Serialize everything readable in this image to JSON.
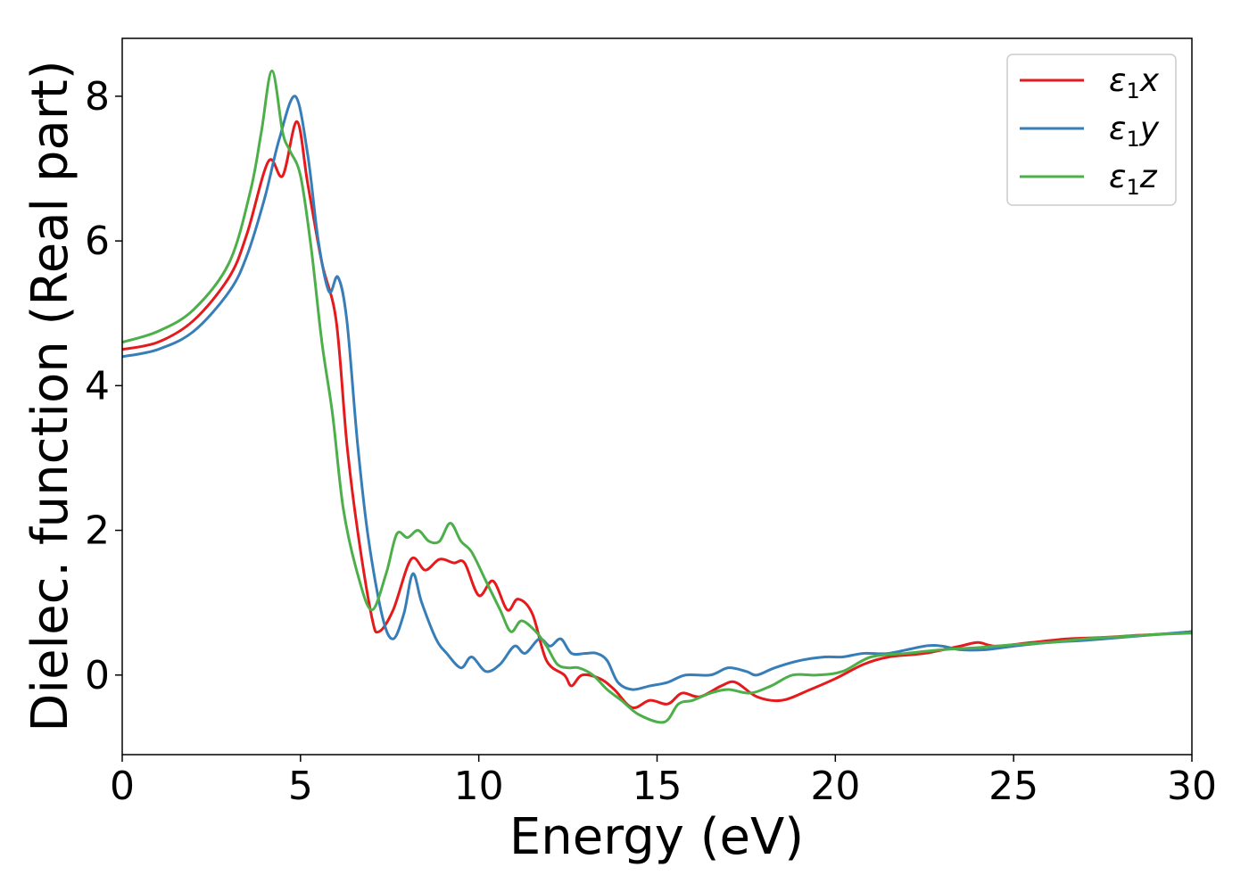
{
  "chart_data": {
    "type": "line",
    "title": "",
    "xlabel": "Energy (eV)",
    "ylabel": "Dielec. function (Real part)",
    "xlim": [
      0,
      30
    ],
    "ylim": [
      -1.1,
      8.8
    ],
    "xticks": [
      0,
      5,
      10,
      15,
      20,
      25,
      30
    ],
    "yticks": [
      0,
      2,
      4,
      6,
      8
    ],
    "xtick_labels": [
      "0",
      "5",
      "10",
      "15",
      "20",
      "25",
      "30"
    ],
    "ytick_labels": [
      "0",
      "2",
      "4",
      "6",
      "8"
    ],
    "grid": false,
    "legend_position": "top-right",
    "series": [
      {
        "name": "ε1x",
        "name_base": "ε",
        "name_sub": "1",
        "name_tail": "x",
        "color": "#e41a1c",
        "points": [
          [
            0,
            4.5
          ],
          [
            1,
            4.6
          ],
          [
            2,
            4.9
          ],
          [
            3,
            5.5
          ],
          [
            3.5,
            6.1
          ],
          [
            4.1,
            7.1
          ],
          [
            4.5,
            6.9
          ],
          [
            4.9,
            7.65
          ],
          [
            5.2,
            6.8
          ],
          [
            5.6,
            5.7
          ],
          [
            6.0,
            4.9
          ],
          [
            6.3,
            3.2
          ],
          [
            6.6,
            2.0
          ],
          [
            7.0,
            0.8
          ],
          [
            7.2,
            0.6
          ],
          [
            7.6,
            0.9
          ],
          [
            8.1,
            1.6
          ],
          [
            8.5,
            1.45
          ],
          [
            8.9,
            1.6
          ],
          [
            9.3,
            1.55
          ],
          [
            9.6,
            1.55
          ],
          [
            10.0,
            1.1
          ],
          [
            10.4,
            1.3
          ],
          [
            10.8,
            0.9
          ],
          [
            11.1,
            1.05
          ],
          [
            11.5,
            0.85
          ],
          [
            11.9,
            0.2
          ],
          [
            12.4,
            0.0
          ],
          [
            12.6,
            -0.15
          ],
          [
            12.9,
            0.0
          ],
          [
            13.4,
            -0.05
          ],
          [
            13.8,
            -0.2
          ],
          [
            14.3,
            -0.45
          ],
          [
            14.8,
            -0.35
          ],
          [
            15.3,
            -0.4
          ],
          [
            15.7,
            -0.25
          ],
          [
            16.2,
            -0.3
          ],
          [
            16.8,
            -0.15
          ],
          [
            17.2,
            -0.1
          ],
          [
            17.8,
            -0.3
          ],
          [
            18.5,
            -0.35
          ],
          [
            19.3,
            -0.2
          ],
          [
            20.0,
            -0.05
          ],
          [
            20.8,
            0.15
          ],
          [
            21.5,
            0.25
          ],
          [
            22.5,
            0.3
          ],
          [
            23.5,
            0.4
          ],
          [
            24.0,
            0.45
          ],
          [
            24.5,
            0.4
          ],
          [
            25.5,
            0.45
          ],
          [
            26.5,
            0.5
          ],
          [
            27.5,
            0.52
          ],
          [
            28.5,
            0.55
          ],
          [
            29.3,
            0.57
          ],
          [
            30,
            0.6
          ]
        ]
      },
      {
        "name": "ε1y",
        "name_base": "ε",
        "name_sub": "1",
        "name_tail": "y",
        "color": "#377eb8",
        "points": [
          [
            0,
            4.4
          ],
          [
            1,
            4.5
          ],
          [
            2,
            4.75
          ],
          [
            3,
            5.3
          ],
          [
            3.5,
            5.8
          ],
          [
            4.0,
            6.6
          ],
          [
            4.4,
            7.4
          ],
          [
            4.85,
            8.0
          ],
          [
            5.2,
            7.2
          ],
          [
            5.5,
            6.0
          ],
          [
            5.8,
            5.3
          ],
          [
            6.05,
            5.5
          ],
          [
            6.3,
            4.9
          ],
          [
            6.6,
            3.2
          ],
          [
            6.9,
            1.9
          ],
          [
            7.3,
            0.8
          ],
          [
            7.6,
            0.5
          ],
          [
            7.9,
            0.85
          ],
          [
            8.15,
            1.4
          ],
          [
            8.4,
            1.0
          ],
          [
            8.8,
            0.5
          ],
          [
            9.1,
            0.3
          ],
          [
            9.5,
            0.1
          ],
          [
            9.8,
            0.25
          ],
          [
            10.2,
            0.05
          ],
          [
            10.6,
            0.15
          ],
          [
            11.0,
            0.4
          ],
          [
            11.3,
            0.3
          ],
          [
            11.7,
            0.5
          ],
          [
            12.0,
            0.4
          ],
          [
            12.3,
            0.5
          ],
          [
            12.6,
            0.3
          ],
          [
            13.0,
            0.3
          ],
          [
            13.3,
            0.3
          ],
          [
            13.6,
            0.2
          ],
          [
            13.9,
            -0.1
          ],
          [
            14.3,
            -0.2
          ],
          [
            14.8,
            -0.15
          ],
          [
            15.3,
            -0.1
          ],
          [
            15.8,
            0.0
          ],
          [
            16.5,
            0.0
          ],
          [
            17.0,
            0.1
          ],
          [
            17.5,
            0.05
          ],
          [
            17.8,
            0.0
          ],
          [
            18.3,
            0.1
          ],
          [
            19.0,
            0.2
          ],
          [
            19.7,
            0.25
          ],
          [
            20.2,
            0.25
          ],
          [
            20.8,
            0.3
          ],
          [
            21.5,
            0.3
          ],
          [
            22.5,
            0.4
          ],
          [
            23.0,
            0.4
          ],
          [
            23.5,
            0.35
          ],
          [
            24.2,
            0.35
          ],
          [
            25.0,
            0.4
          ],
          [
            26.0,
            0.45
          ],
          [
            27.0,
            0.48
          ],
          [
            28.0,
            0.52
          ],
          [
            29.0,
            0.56
          ],
          [
            30,
            0.6
          ]
        ]
      },
      {
        "name": "ε1z",
        "name_base": "ε",
        "name_sub": "1",
        "name_tail": "z",
        "color": "#4daf4a",
        "points": [
          [
            0,
            4.6
          ],
          [
            1,
            4.75
          ],
          [
            2,
            5.05
          ],
          [
            3,
            5.7
          ],
          [
            3.6,
            6.7
          ],
          [
            3.9,
            7.5
          ],
          [
            4.2,
            8.35
          ],
          [
            4.5,
            7.5
          ],
          [
            4.7,
            7.25
          ],
          [
            5.0,
            6.9
          ],
          [
            5.3,
            5.9
          ],
          [
            5.6,
            4.6
          ],
          [
            5.9,
            3.6
          ],
          [
            6.2,
            2.3
          ],
          [
            6.6,
            1.4
          ],
          [
            7.0,
            0.9
          ],
          [
            7.4,
            1.4
          ],
          [
            7.7,
            1.95
          ],
          [
            8.0,
            1.9
          ],
          [
            8.3,
            2.0
          ],
          [
            8.6,
            1.85
          ],
          [
            8.9,
            1.85
          ],
          [
            9.2,
            2.1
          ],
          [
            9.5,
            1.85
          ],
          [
            9.8,
            1.7
          ],
          [
            10.2,
            1.3
          ],
          [
            10.6,
            0.9
          ],
          [
            10.9,
            0.6
          ],
          [
            11.2,
            0.75
          ],
          [
            11.6,
            0.6
          ],
          [
            11.9,
            0.4
          ],
          [
            12.2,
            0.15
          ],
          [
            12.5,
            0.1
          ],
          [
            12.8,
            0.1
          ],
          [
            13.2,
            0.0
          ],
          [
            13.6,
            -0.2
          ],
          [
            14.0,
            -0.35
          ],
          [
            14.5,
            -0.55
          ],
          [
            15.2,
            -0.65
          ],
          [
            15.6,
            -0.4
          ],
          [
            16.0,
            -0.35
          ],
          [
            16.5,
            -0.25
          ],
          [
            17.0,
            -0.2
          ],
          [
            17.6,
            -0.25
          ],
          [
            18.2,
            -0.15
          ],
          [
            18.8,
            0.0
          ],
          [
            19.5,
            0.0
          ],
          [
            20.2,
            0.05
          ],
          [
            21.0,
            0.25
          ],
          [
            22.0,
            0.3
          ],
          [
            23.0,
            0.35
          ],
          [
            24.0,
            0.38
          ],
          [
            25.0,
            0.42
          ],
          [
            26.0,
            0.45
          ],
          [
            27.0,
            0.5
          ],
          [
            28.0,
            0.53
          ],
          [
            29.0,
            0.56
          ],
          [
            30,
            0.58
          ]
        ]
      }
    ]
  }
}
